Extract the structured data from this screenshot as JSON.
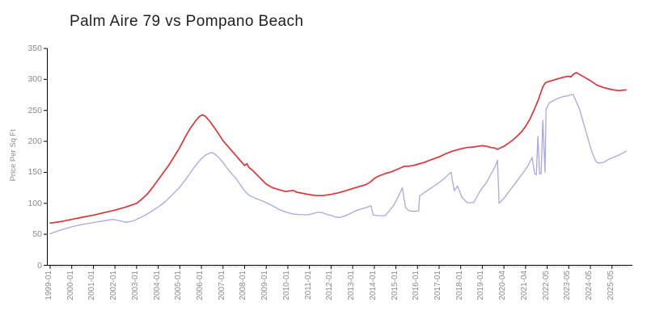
{
  "title": "Palm Aire 79 vs Pompano Beach",
  "y_axis_label": "Price Per Sq Ft",
  "colors": {
    "red_series": "#e03437",
    "blue_series": "#a7a7e6",
    "axis": "#000000",
    "minor_tick": "#c3c3c3",
    "tick_label": "#8a8a8a",
    "title": "#1f1f1f",
    "background": "#ffffff"
  },
  "chart_data": {
    "type": "line",
    "title": "Palm Aire 79 vs Pompano Beach",
    "xlabel": "",
    "ylabel": "Price Per Sq Ft",
    "ylim": [
      0,
      350
    ],
    "y_ticks": [
      0,
      50,
      100,
      150,
      200,
      250,
      300,
      350
    ],
    "x_tick_labels": [
      "1999-01",
      "2000-01",
      "2001-01",
      "2002-01",
      "2003-01",
      "2004-01",
      "2005-01",
      "2006-01",
      "2007-01",
      "2008-01",
      "2009-01",
      "2010-01",
      "2011-01",
      "2012-01",
      "2013-01",
      "2014-01",
      "2015-01",
      "2016-01",
      "2017-01",
      "2018-01",
      "2019-01",
      "2020-04",
      "2021-04",
      "2022-05",
      "2023-05",
      "2024-05",
      "2025-05"
    ],
    "x_units": "tick index: 0 = 1999-01 tick, 26 = 2025-05 tick",
    "grid": false,
    "legend": "none",
    "series": [
      {
        "name": "red-series",
        "color": "#e03437",
        "points": [
          [
            0,
            68
          ],
          [
            0.5,
            70.5
          ],
          [
            1,
            74
          ],
          [
            1.5,
            77.5
          ],
          [
            2,
            81
          ],
          [
            2.5,
            85
          ],
          [
            3,
            89
          ],
          [
            3.5,
            94
          ],
          [
            4,
            100
          ],
          [
            4.25,
            107
          ],
          [
            4.5,
            115
          ],
          [
            4.75,
            126
          ],
          [
            5,
            138
          ],
          [
            5.25,
            150
          ],
          [
            5.5,
            162
          ],
          [
            5.75,
            176
          ],
          [
            6,
            190
          ],
          [
            6.25,
            207
          ],
          [
            6.5,
            222
          ],
          [
            6.75,
            234
          ],
          [
            6.9,
            240
          ],
          [
            7.05,
            243
          ],
          [
            7.2,
            240
          ],
          [
            7.4,
            232
          ],
          [
            7.6,
            222
          ],
          [
            7.8,
            212
          ],
          [
            8,
            201
          ],
          [
            8.2,
            193
          ],
          [
            8.4,
            185
          ],
          [
            8.6,
            177
          ],
          [
            8.8,
            169
          ],
          [
            9,
            161
          ],
          [
            9.1,
            164
          ],
          [
            9.2,
            158
          ],
          [
            9.4,
            152
          ],
          [
            9.6,
            145
          ],
          [
            9.8,
            138
          ],
          [
            10,
            131
          ],
          [
            10.3,
            125
          ],
          [
            10.6,
            122
          ],
          [
            10.9,
            119
          ],
          [
            11.1,
            120
          ],
          [
            11.25,
            121
          ],
          [
            11.4,
            118
          ],
          [
            11.7,
            116
          ],
          [
            12,
            114
          ],
          [
            12.3,
            112.5
          ],
          [
            12.6,
            112.5
          ],
          [
            13,
            114.5
          ],
          [
            13.3,
            116.5
          ],
          [
            13.6,
            119.5
          ],
          [
            14,
            124
          ],
          [
            14.3,
            127
          ],
          [
            14.6,
            130
          ],
          [
            14.8,
            134
          ],
          [
            15,
            140
          ],
          [
            15.2,
            144
          ],
          [
            15.5,
            148
          ],
          [
            15.8,
            151
          ],
          [
            16,
            154
          ],
          [
            16.2,
            157
          ],
          [
            16.4,
            160
          ],
          [
            16.6,
            160
          ],
          [
            16.8,
            161
          ],
          [
            17,
            163
          ],
          [
            17.3,
            166
          ],
          [
            17.6,
            170
          ],
          [
            18,
            175
          ],
          [
            18.3,
            180
          ],
          [
            18.6,
            184
          ],
          [
            19,
            188
          ],
          [
            19.3,
            190
          ],
          [
            19.6,
            191
          ],
          [
            20,
            193
          ],
          [
            20.2,
            192
          ],
          [
            20.4,
            190
          ],
          [
            20.6,
            189
          ],
          [
            20.7,
            187
          ],
          [
            20.8,
            189
          ],
          [
            21,
            192
          ],
          [
            21.2,
            197
          ],
          [
            21.4,
            202
          ],
          [
            21.6,
            208
          ],
          [
            21.8,
            215
          ],
          [
            22,
            224
          ],
          [
            22.2,
            236
          ],
          [
            22.4,
            251
          ],
          [
            22.6,
            268
          ],
          [
            22.8,
            288
          ],
          [
            22.9,
            294
          ],
          [
            23,
            296
          ],
          [
            23.2,
            298
          ],
          [
            23.5,
            301
          ],
          [
            23.8,
            304
          ],
          [
            24,
            305
          ],
          [
            24.1,
            304
          ],
          [
            24.2,
            308
          ],
          [
            24.35,
            311
          ],
          [
            24.5,
            308
          ],
          [
            24.7,
            304
          ],
          [
            25,
            298
          ],
          [
            25.3,
            291
          ],
          [
            25.6,
            287
          ],
          [
            26,
            283.5
          ],
          [
            26.3,
            282
          ],
          [
            26.65,
            283
          ]
        ]
      },
      {
        "name": "blue-series",
        "color": "#a7a7e6",
        "points": [
          [
            0,
            51
          ],
          [
            0.5,
            57
          ],
          [
            1,
            62
          ],
          [
            1.5,
            66
          ],
          [
            2,
            69
          ],
          [
            2.5,
            72
          ],
          [
            2.9,
            74
          ],
          [
            3.2,
            72
          ],
          [
            3.5,
            69.5
          ],
          [
            3.8,
            71
          ],
          [
            4,
            74
          ],
          [
            4.3,
            79
          ],
          [
            4.6,
            85
          ],
          [
            5,
            94
          ],
          [
            5.3,
            102
          ],
          [
            5.6,
            112
          ],
          [
            6,
            126
          ],
          [
            6.3,
            140
          ],
          [
            6.6,
            155
          ],
          [
            6.8,
            164
          ],
          [
            7,
            172
          ],
          [
            7.2,
            178
          ],
          [
            7.45,
            182
          ],
          [
            7.6,
            180
          ],
          [
            7.8,
            174
          ],
          [
            8,
            166
          ],
          [
            8.2,
            156
          ],
          [
            8.4,
            148
          ],
          [
            8.6,
            140
          ],
          [
            8.8,
            130
          ],
          [
            9,
            120
          ],
          [
            9.2,
            113
          ],
          [
            9.5,
            108
          ],
          [
            9.8,
            104
          ],
          [
            10,
            101
          ],
          [
            10.3,
            96
          ],
          [
            10.6,
            90
          ],
          [
            10.9,
            86
          ],
          [
            11.2,
            83
          ],
          [
            11.5,
            82
          ],
          [
            11.8,
            81.5
          ],
          [
            12,
            82
          ],
          [
            12.2,
            84
          ],
          [
            12.4,
            85.5
          ],
          [
            12.6,
            85
          ],
          [
            12.8,
            82
          ],
          [
            13,
            80.5
          ],
          [
            13.2,
            78
          ],
          [
            13.4,
            77
          ],
          [
            13.6,
            79
          ],
          [
            13.8,
            82
          ],
          [
            14,
            85.5
          ],
          [
            14.3,
            90
          ],
          [
            14.6,
            93
          ],
          [
            14.85,
            96
          ],
          [
            14.95,
            81
          ],
          [
            15.2,
            80
          ],
          [
            15.5,
            80
          ],
          [
            15.7,
            88
          ],
          [
            15.9,
            97
          ],
          [
            16.1,
            110
          ],
          [
            16.3,
            125
          ],
          [
            16.45,
            93
          ],
          [
            16.6,
            88
          ],
          [
            16.8,
            87
          ],
          [
            17.05,
            88
          ],
          [
            17.1,
            112
          ],
          [
            17.3,
            117
          ],
          [
            17.6,
            124
          ],
          [
            17.9,
            131
          ],
          [
            18.2,
            139
          ],
          [
            18.45,
            147
          ],
          [
            18.55,
            150
          ],
          [
            18.7,
            120
          ],
          [
            18.85,
            128
          ],
          [
            19.05,
            110
          ],
          [
            19.3,
            101
          ],
          [
            19.6,
            101
          ],
          [
            19.9,
            120
          ],
          [
            20.2,
            134
          ],
          [
            20.4,
            147
          ],
          [
            20.6,
            160
          ],
          [
            20.7,
            170
          ],
          [
            20.78,
            100
          ],
          [
            21,
            108
          ],
          [
            21.3,
            122
          ],
          [
            21.6,
            136
          ],
          [
            21.9,
            150
          ],
          [
            22.1,
            160
          ],
          [
            22.3,
            174
          ],
          [
            22.42,
            148
          ],
          [
            22.5,
            146
          ],
          [
            22.57,
            208
          ],
          [
            22.65,
            147
          ],
          [
            22.72,
            148
          ],
          [
            22.8,
            234
          ],
          [
            22.9,
            150
          ],
          [
            22.95,
            252
          ],
          [
            23.1,
            262
          ],
          [
            23.4,
            268
          ],
          [
            23.7,
            272
          ],
          [
            24,
            274
          ],
          [
            24.2,
            276
          ],
          [
            24.5,
            252
          ],
          [
            24.8,
            215
          ],
          [
            25.05,
            185
          ],
          [
            25.25,
            168
          ],
          [
            25.35,
            165
          ],
          [
            25.6,
            166
          ],
          [
            25.9,
            172
          ],
          [
            26.2,
            176
          ],
          [
            26.5,
            181
          ],
          [
            26.65,
            184
          ]
        ]
      }
    ]
  }
}
